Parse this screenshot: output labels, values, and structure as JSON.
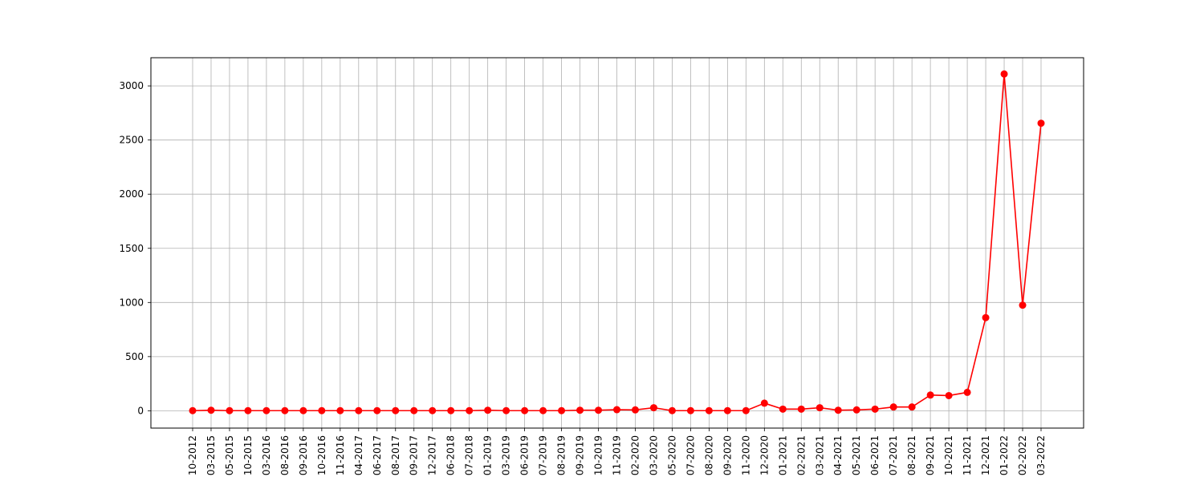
{
  "chart_data": {
    "type": "line",
    "title": "",
    "xlabel": "",
    "ylabel": "",
    "categories": [
      "10-2012",
      "03-2015",
      "05-2015",
      "10-2015",
      "03-2016",
      "08-2016",
      "09-2016",
      "10-2016",
      "11-2016",
      "04-2017",
      "06-2017",
      "08-2017",
      "09-2017",
      "12-2017",
      "06-2018",
      "07-2018",
      "01-2019",
      "03-2019",
      "06-2019",
      "07-2019",
      "08-2019",
      "09-2019",
      "10-2019",
      "11-2019",
      "02-2020",
      "03-2020",
      "05-2020",
      "07-2020",
      "08-2020",
      "09-2020",
      "11-2020",
      "12-2020",
      "01-2021",
      "02-2021",
      "03-2021",
      "04-2021",
      "05-2021",
      "06-2021",
      "07-2021",
      "08-2021",
      "09-2021",
      "10-2021",
      "11-2021",
      "12-2021",
      "01-2022",
      "02-2022",
      "03-2022"
    ],
    "series": [
      {
        "color": "#ff0000",
        "marker": "circle",
        "values": [
          1,
          5,
          1,
          1,
          1,
          1,
          1,
          1,
          1,
          1,
          1,
          1,
          1,
          1,
          1,
          1,
          5,
          1,
          1,
          1,
          1,
          5,
          5,
          10,
          8,
          28,
          1,
          1,
          1,
          1,
          1,
          70,
          15,
          15,
          28,
          5,
          8,
          15,
          35,
          35,
          145,
          140,
          170,
          860,
          3110,
          975,
          2655
        ]
      }
    ],
    "ylim": [
      -160,
      3260
    ],
    "yticks": [
      0,
      500,
      1000,
      1500,
      2000,
      2500,
      3000
    ],
    "grid": true,
    "xtick_rotation": 90
  }
}
